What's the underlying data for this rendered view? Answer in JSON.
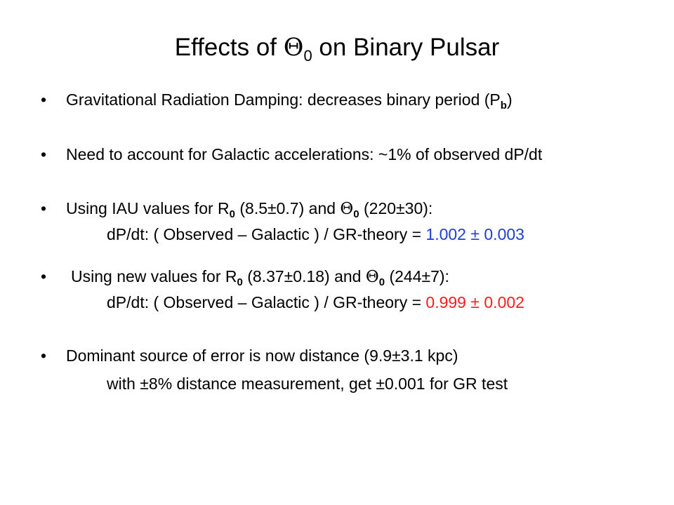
{
  "slide": {
    "title": {
      "prefix": "Effects of ",
      "theta": "Θ",
      "theta_sub": "0",
      "suffix": " on Binary Pulsar"
    },
    "bullet_char": "•",
    "colors": {
      "background": "#ffffff",
      "text": "#000000",
      "blue_value": "#1c3fd6",
      "red_value": "#ff1c1c"
    },
    "b1": {
      "text": "Gravitational Radiation Damping: decreases binary period (P",
      "sub": "b",
      "close": ")"
    },
    "b2": {
      "text": "Need to account for Galactic accelerations: ~1% of observed dP/dt"
    },
    "b3": {
      "a": "Using IAU values for  R",
      "r_sub": "0",
      "b": " (8.5±0.7)   and  ",
      "theta": "Θ",
      "theta_sub": "0",
      "c": " (220±30):",
      "line2_text": "dP/dt:  ( Observed – Galactic )  / GR-theory = ",
      "line2_value": "1.002 ± 0.003"
    },
    "b4": {
      "a": "Using new values for R",
      "r_sub": "0",
      "b": " (8.37±0.18) and ",
      "theta": "Θ",
      "theta_sub": "0",
      "c": " (244±7):",
      "line2_text": "dP/dt:  ( Observed – Galactic )  / GR-theory = ",
      "line2_value": "0.999 ± 0.002"
    },
    "b5": {
      "text": "Dominant source of error is now distance (9.9±3.1 kpc)",
      "line2": "with ±8% distance measurement, get ±0.001 for GR test"
    }
  }
}
